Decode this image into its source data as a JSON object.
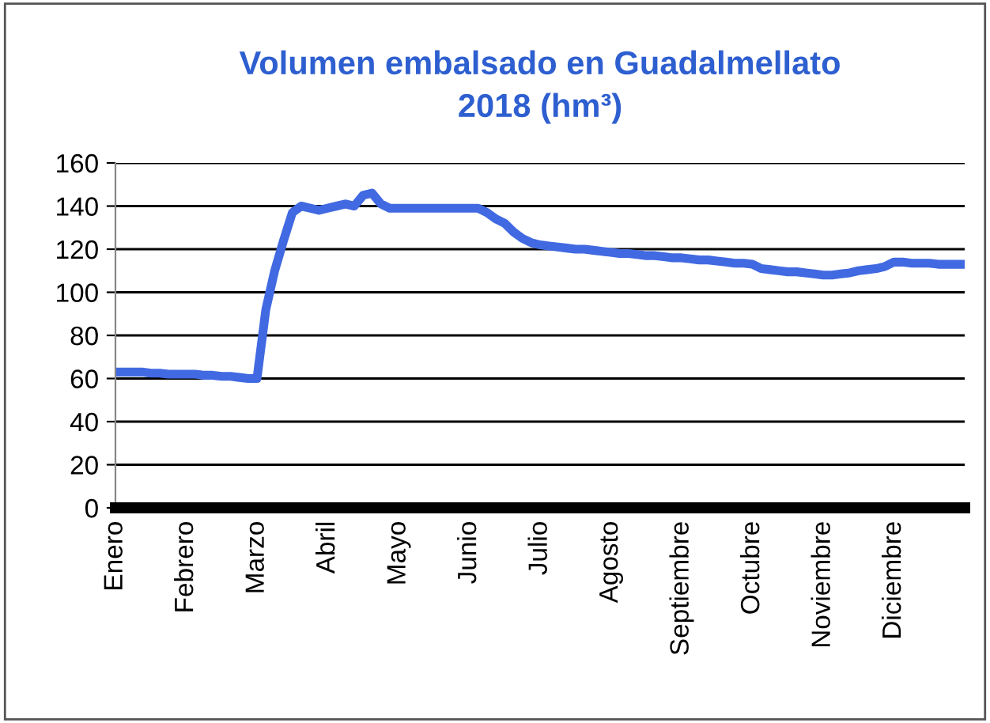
{
  "chart_data": {
    "type": "line",
    "title": "Volumen embalsado en Guadalmellato\n2018 (hm³)",
    "categories": [
      "Enero",
      null,
      null,
      null,
      null,
      null,
      null,
      null,
      "Febrero",
      null,
      null,
      null,
      null,
      null,
      null,
      null,
      "Marzo",
      null,
      null,
      null,
      null,
      null,
      null,
      null,
      "Abril",
      null,
      null,
      null,
      null,
      null,
      null,
      null,
      "Mayo",
      null,
      null,
      null,
      null,
      null,
      null,
      null,
      "Junio",
      null,
      null,
      null,
      null,
      null,
      null,
      null,
      "Julio",
      null,
      null,
      null,
      null,
      null,
      null,
      null,
      "Agosto",
      null,
      null,
      null,
      null,
      null,
      null,
      null,
      "Septiembre",
      null,
      null,
      null,
      null,
      null,
      null,
      null,
      "Octubre",
      null,
      null,
      null,
      null,
      null,
      null,
      null,
      "Noviembre",
      null,
      null,
      null,
      null,
      null,
      null,
      null,
      "Diciembre",
      null,
      null,
      null,
      null,
      null,
      null,
      null,
      null
    ],
    "series": [
      {
        "color": "#4169e1",
        "values": [
          63,
          63,
          63,
          63,
          62.5,
          62.5,
          62,
          62,
          62,
          62,
          61.5,
          61.5,
          61,
          61,
          60.5,
          60,
          60,
          92,
          110,
          124,
          137,
          140,
          139,
          138,
          139,
          140,
          141,
          140,
          145,
          146,
          141,
          139,
          139,
          139,
          139,
          139,
          139,
          139,
          139,
          139,
          139,
          139,
          137,
          134,
          132,
          128,
          125,
          123,
          122,
          121.5,
          121,
          120.5,
          120,
          120,
          119.5,
          119,
          118.5,
          118,
          118,
          117.5,
          117,
          117,
          116.5,
          116,
          116,
          115.5,
          115,
          115,
          114.5,
          114,
          113.5,
          113.5,
          113,
          111,
          110.5,
          110,
          109.5,
          109.5,
          109,
          108.5,
          108,
          108,
          108.5,
          109,
          110,
          110.5,
          111,
          112,
          114,
          114,
          113.5,
          113.5,
          113.5,
          113,
          113,
          113,
          113
        ]
      }
    ],
    "ylim": [
      0,
      160
    ],
    "yticks": [
      0,
      20,
      40,
      60,
      80,
      100,
      120,
      140,
      160
    ],
    "grid": "y",
    "marker": "none",
    "line_style": "solid"
  }
}
